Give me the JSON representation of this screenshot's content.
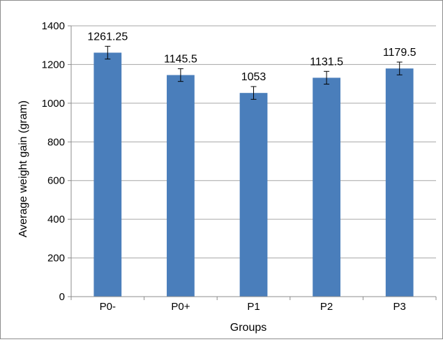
{
  "chart_data": {
    "type": "bar",
    "categories": [
      "P0-",
      "P0+",
      "P1",
      "P2",
      "P3"
    ],
    "values": [
      1261.25,
      1145.5,
      1053,
      1131.5,
      1179.5
    ],
    "data_labels": [
      "1261.25",
      "1145.5",
      "1053",
      "1131.5",
      "1179.5"
    ],
    "error": [
      33,
      33,
      33,
      33,
      33
    ],
    "title": "",
    "xlabel": "Groups",
    "ylabel": "Average weight gain (gram)",
    "ylim": [
      0,
      1400
    ],
    "yticks": [
      0,
      200,
      400,
      600,
      800,
      1000,
      1200,
      1400
    ],
    "grid": true,
    "legend": "none",
    "colors": {
      "bar": "#4a7ebb",
      "grid": "#a6a6a6",
      "axis": "#8c8c8c",
      "error_bar": "#000000"
    }
  }
}
